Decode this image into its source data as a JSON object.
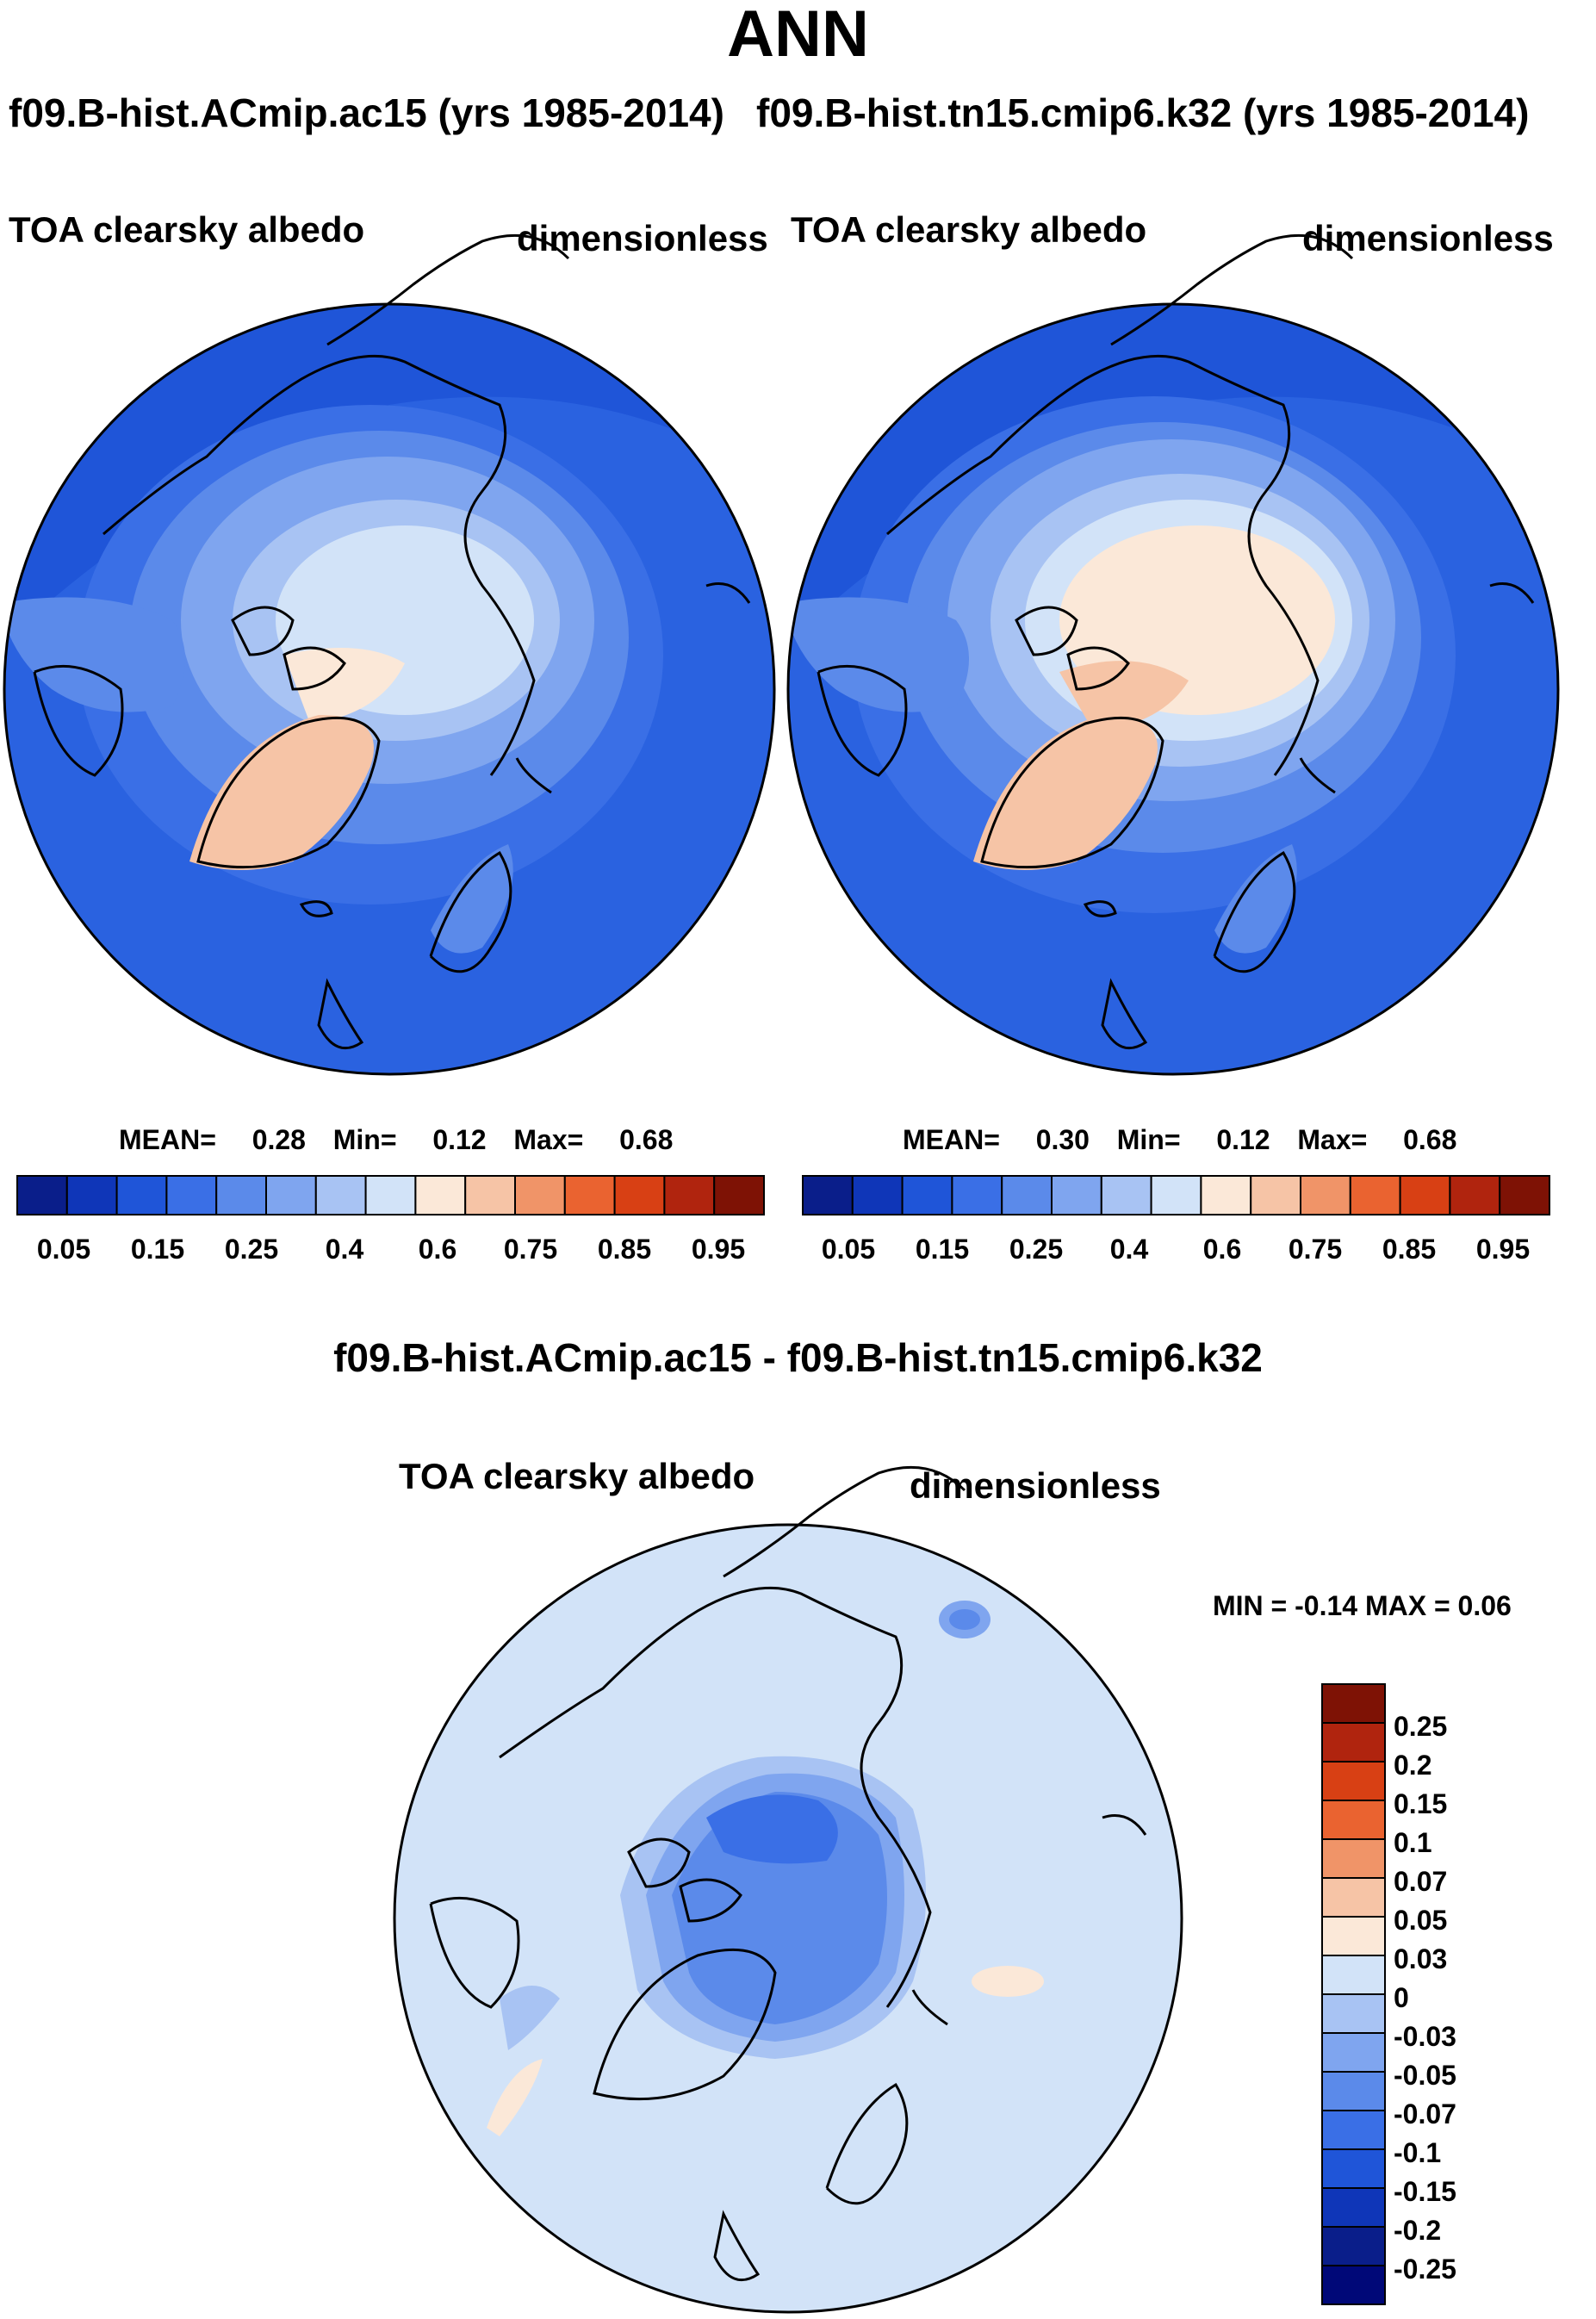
{
  "figure": {
    "title": "ANN"
  },
  "chart_data": [
    {
      "type": "heatmap",
      "projection": "north-polar-stereographic",
      "run_title": "f09.B-hist.ACmip.ac15 (yrs 1985-2014)",
      "variable": "TOA clearsky albedo",
      "units": "dimensionless",
      "mean_label": "MEAN=",
      "mean": "0.28",
      "min_label": "Min=",
      "min": "0.12",
      "max_label": "Max=",
      "max": "0.68",
      "colorbar_ticks": [
        "0.05",
        "0.15",
        "0.25",
        "0.4",
        "0.6",
        "0.75",
        "0.85",
        "0.95"
      ],
      "colorbar_colors": [
        "#0a1e8a",
        "#0f36b8",
        "#1f55d8",
        "#3a6fe6",
        "#5b8aea",
        "#7fa5ef",
        "#a8c3f3",
        "#d2e3f8",
        "#fbe8d8",
        "#f6c4a6",
        "#f09468",
        "#ea6330",
        "#d84014",
        "#b0240e",
        "#7e1205"
      ]
    },
    {
      "type": "heatmap",
      "projection": "north-polar-stereographic",
      "run_title": "f09.B-hist.tn15.cmip6.k32 (yrs 1985-2014)",
      "variable": "TOA clearsky albedo",
      "units": "dimensionless",
      "mean_label": "MEAN=",
      "mean": "0.30",
      "min_label": "Min=",
      "min": "0.12",
      "max_label": "Max=",
      "max": "0.68",
      "colorbar_ticks": [
        "0.05",
        "0.15",
        "0.25",
        "0.4",
        "0.6",
        "0.75",
        "0.85",
        "0.95"
      ]
    },
    {
      "type": "heatmap",
      "projection": "north-polar-stereographic",
      "title": "f09.B-hist.ACmip.ac15 - f09.B-hist.tn15.cmip6.k32",
      "variable": "TOA clearsky albedo",
      "units": "dimensionless",
      "minmax": "MIN =  -0.14 MAX =   0.06",
      "colorbar_ticks": [
        "0.25",
        "0.2",
        "0.15",
        "0.1",
        "0.07",
        "0.05",
        "0.03",
        "0",
        "-0.03",
        "-0.05",
        "-0.07",
        "-0.1",
        "-0.15",
        "-0.2",
        "-0.25"
      ],
      "colorbar_colors": [
        "#7e1205",
        "#b0240e",
        "#d84014",
        "#ea6330",
        "#f09468",
        "#f6c4a6",
        "#fbe8d8",
        "#d2e3f8",
        "#a8c3f3",
        "#7fa5ef",
        "#5b8aea",
        "#3a6fe6",
        "#1f55d8",
        "#0f36b8",
        "#0a1e8a",
        "#000878"
      ]
    }
  ]
}
